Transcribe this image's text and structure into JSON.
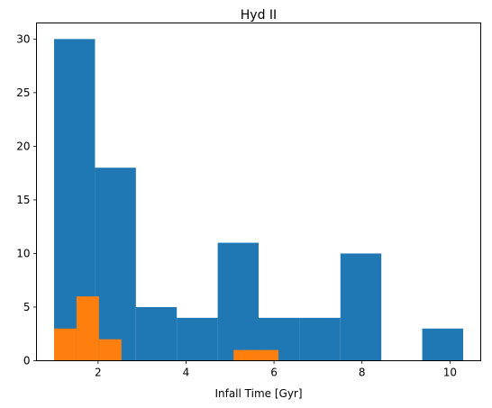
{
  "chart_data": {
    "type": "bar",
    "title": "Hyd II",
    "xlabel": "Infall Time [Gyr]",
    "ylabel": "",
    "xlim": [
      0.6,
      10.7
    ],
    "ylim": [
      0,
      31.5
    ],
    "xticks": [
      2,
      4,
      6,
      8,
      10
    ],
    "yticks": [
      0,
      5,
      10,
      15,
      20,
      25,
      30
    ],
    "grid": false,
    "legend": "none",
    "series": [
      {
        "color": "#1f77b4",
        "bins": [
          {
            "x0": 1.0,
            "x1": 1.93,
            "value": 30
          },
          {
            "x0": 1.93,
            "x1": 2.86,
            "value": 18
          },
          {
            "x0": 2.86,
            "x1": 3.79,
            "value": 5
          },
          {
            "x0": 3.79,
            "x1": 4.72,
            "value": 4
          },
          {
            "x0": 4.72,
            "x1": 5.65,
            "value": 11
          },
          {
            "x0": 5.65,
            "x1": 6.58,
            "value": 4
          },
          {
            "x0": 6.58,
            "x1": 7.51,
            "value": 4
          },
          {
            "x0": 7.51,
            "x1": 8.44,
            "value": 10
          },
          {
            "x0": 8.44,
            "x1": 9.37,
            "value": 0
          },
          {
            "x0": 9.37,
            "x1": 10.3,
            "value": 3
          }
        ]
      },
      {
        "color": "#ff7f0e",
        "bins": [
          {
            "x0": 1.0,
            "x1": 1.51,
            "value": 3
          },
          {
            "x0": 1.51,
            "x1": 2.02,
            "value": 6
          },
          {
            "x0": 2.02,
            "x1": 2.53,
            "value": 2
          },
          {
            "x0": 5.08,
            "x1": 5.59,
            "value": 1
          },
          {
            "x0": 5.59,
            "x1": 6.1,
            "value": 1
          }
        ]
      }
    ]
  }
}
